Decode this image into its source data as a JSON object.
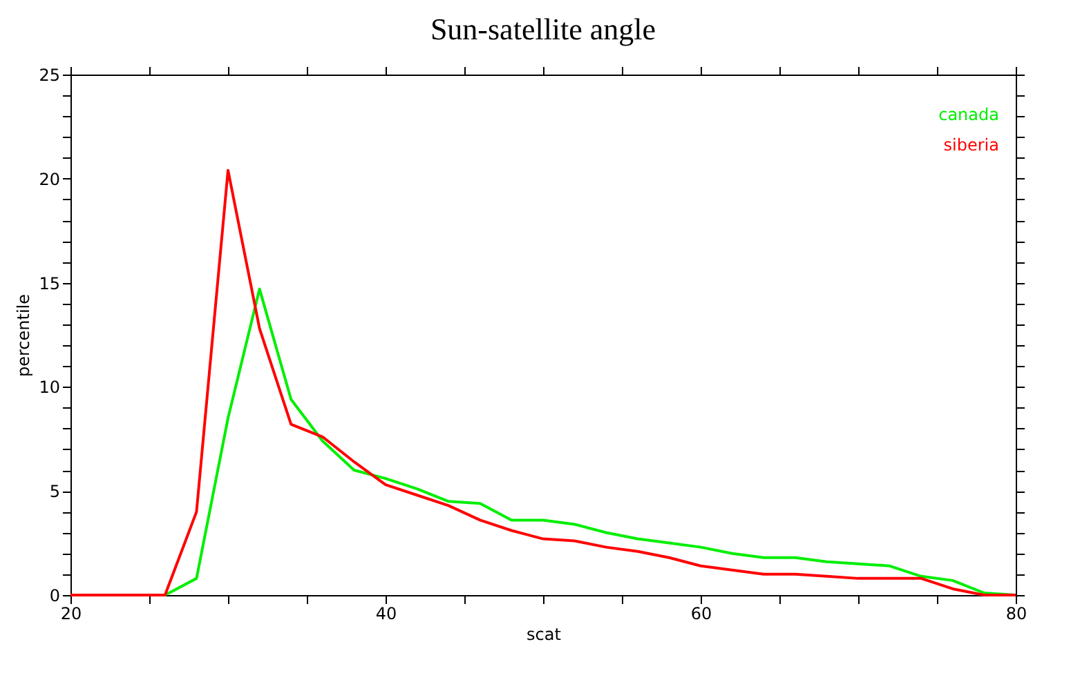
{
  "chart_data": {
    "type": "line",
    "title": "Sun-satellite angle",
    "xlabel": "scat",
    "ylabel": "percentile",
    "x": [
      20,
      22,
      24,
      26,
      28,
      30,
      32,
      34,
      36,
      38,
      40,
      42,
      44,
      46,
      48,
      50,
      52,
      54,
      56,
      58,
      60,
      62,
      64,
      66,
      68,
      70,
      72,
      74,
      76,
      78,
      80
    ],
    "series": [
      {
        "name": "canada",
        "color": "#00ee00",
        "values": [
          null,
          null,
          null,
          0,
          0.8,
          8.5,
          14.7,
          9.4,
          7.4,
          6.0,
          5.6,
          5.1,
          4.5,
          4.4,
          3.6,
          3.6,
          3.4,
          3.0,
          2.7,
          2.5,
          2.3,
          2.0,
          1.8,
          1.8,
          1.6,
          1.5,
          1.4,
          0.9,
          0.7,
          0.1,
          0
        ]
      },
      {
        "name": "siberia",
        "color": "#ff0000",
        "values": [
          0,
          0,
          0,
          0,
          4.0,
          20.4,
          12.8,
          8.2,
          7.6,
          6.4,
          5.3,
          4.8,
          4.3,
          3.6,
          3.1,
          2.7,
          2.6,
          2.3,
          2.1,
          1.8,
          1.4,
          1.2,
          1.0,
          1.0,
          0.9,
          0.8,
          0.8,
          0.8,
          0.3,
          0.0,
          0
        ]
      }
    ],
    "xlim": [
      20,
      80
    ],
    "ylim": [
      0,
      25
    ],
    "xticks": [
      20,
      {
        "value": 25,
        "label": null
      },
      {
        "value": 30,
        "label": null
      },
      {
        "value": 35,
        "label": null
      },
      40,
      {
        "value": 45,
        "label": null
      },
      {
        "value": 50,
        "label": null
      },
      {
        "value": 55,
        "label": null
      },
      60,
      {
        "value": 65,
        "label": null
      },
      {
        "value": 70,
        "label": null
      },
      {
        "value": 75,
        "label": null
      },
      80
    ],
    "yticks": [
      0,
      {
        "value": 1,
        "label": null
      },
      {
        "value": 2,
        "label": null
      },
      {
        "value": 3,
        "label": null
      },
      {
        "value": 4,
        "label": null
      },
      5,
      {
        "value": 6,
        "label": null
      },
      {
        "value": 7,
        "label": null
      },
      {
        "value": 8,
        "label": null
      },
      {
        "value": 9,
        "label": null
      },
      10,
      {
        "value": 11,
        "label": null
      },
      {
        "value": 12,
        "label": null
      },
      {
        "value": 13,
        "label": null
      },
      {
        "value": 14,
        "label": null
      },
      15,
      {
        "value": 16,
        "label": null
      },
      {
        "value": 17,
        "label": null
      },
      {
        "value": 18,
        "label": null
      },
      {
        "value": 19,
        "label": null
      },
      20,
      {
        "value": 21,
        "label": null
      },
      {
        "value": 22,
        "label": null
      },
      {
        "value": 23,
        "label": null
      },
      {
        "value": 24,
        "label": null
      },
      25
    ],
    "legend": "top right",
    "grid": false,
    "marker": "none",
    "line_style": "solid"
  }
}
